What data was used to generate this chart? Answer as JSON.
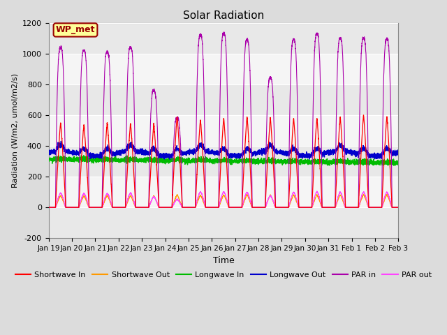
{
  "title": "Solar Radiation",
  "xlabel": "Time",
  "ylabel": "Radiation (W/m2, umol/m2/s)",
  "ylim": [
    -200,
    1200
  ],
  "xlim": [
    0,
    15
  ],
  "xtick_labels": [
    "Jan 19",
    "Jan 20",
    "Jan 21",
    "Jan 22",
    "Jan 23",
    "Jan 24",
    "Jan 25",
    "Jan 26",
    "Jan 27",
    "Jan 28",
    "Jan 29",
    "Jan 30",
    "Jan 31",
    "Feb 1",
    "Feb 2",
    "Feb 3"
  ],
  "ytick_values": [
    -200,
    0,
    200,
    400,
    600,
    800,
    1000,
    1200
  ],
  "background_color": "#dcdcdc",
  "plot_bg_color": "#f0f0f0",
  "annotation_label": "WP_met",
  "annotation_color": "#990000",
  "annotation_bg": "#ffff99",
  "n_days": 15,
  "sw_in_peaks": [
    550,
    540,
    550,
    545,
    540,
    590,
    570,
    580,
    590,
    580,
    580,
    580,
    585,
    600,
    590
  ],
  "par_in_peaks": [
    1040,
    1020,
    1010,
    1040,
    760,
    580,
    1120,
    1130,
    1090,
    840,
    1090,
    1130,
    1100,
    1100,
    1095
  ],
  "lw_in_base": 310,
  "lw_out_base": 350,
  "sw_in_color": "#ff0000",
  "sw_out_color": "#ff9900",
  "lw_in_color": "#00bb00",
  "lw_out_color": "#0000cc",
  "par_in_color": "#aa00aa",
  "par_out_color": "#ff44ff"
}
